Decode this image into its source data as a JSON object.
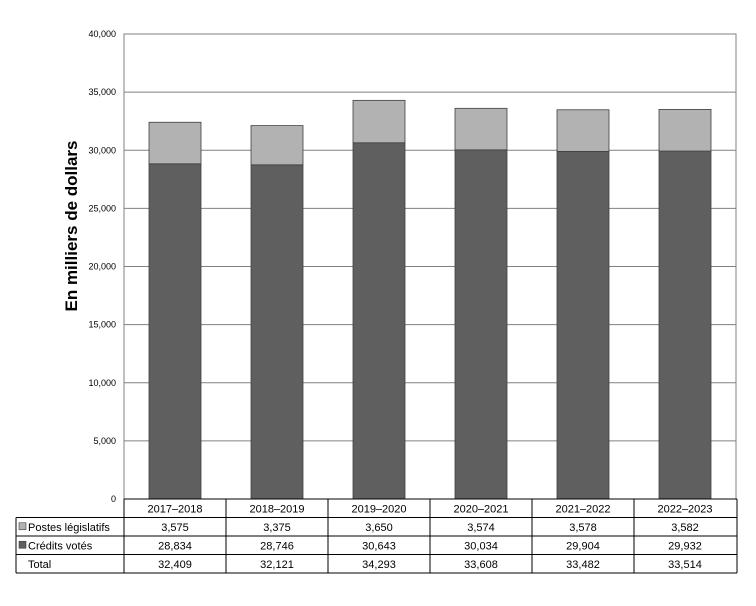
{
  "chart_data": {
    "type": "bar",
    "stacked": true,
    "ylabel": "En milliers de dollars",
    "ylim": [
      0,
      40000
    ],
    "yticks": [
      "0",
      "5,000",
      "10,000",
      "15,000",
      "20,000",
      "25,000",
      "30,000",
      "35,000",
      "40,000"
    ],
    "grid": true,
    "categories": [
      "2017–2018",
      "2018–2019",
      "2019–2020",
      "2020–2021",
      "2021–2022",
      "2022–2023"
    ],
    "series": [
      {
        "name": "Postes législatifs",
        "color": "#b2b2b2",
        "values": [
          3575,
          3375,
          3650,
          3574,
          3578,
          3582
        ],
        "labels": [
          "3,575",
          "3,375",
          "3,650",
          "3,574",
          "3,578",
          "3,582"
        ]
      },
      {
        "name": "Crédits votés",
        "color": "#5f5f5f",
        "values": [
          28834,
          28746,
          30643,
          30034,
          29904,
          29932
        ],
        "labels": [
          "28,834",
          "28,746",
          "30,643",
          "30,034",
          "29,904",
          "29,932"
        ]
      }
    ],
    "total": {
      "name": "Total",
      "values": [
        32409,
        32121,
        34293,
        33608,
        33482,
        33514
      ],
      "labels": [
        "32,409",
        "32,121",
        "34,293",
        "33,608",
        "33,482",
        "33,514"
      ]
    }
  }
}
